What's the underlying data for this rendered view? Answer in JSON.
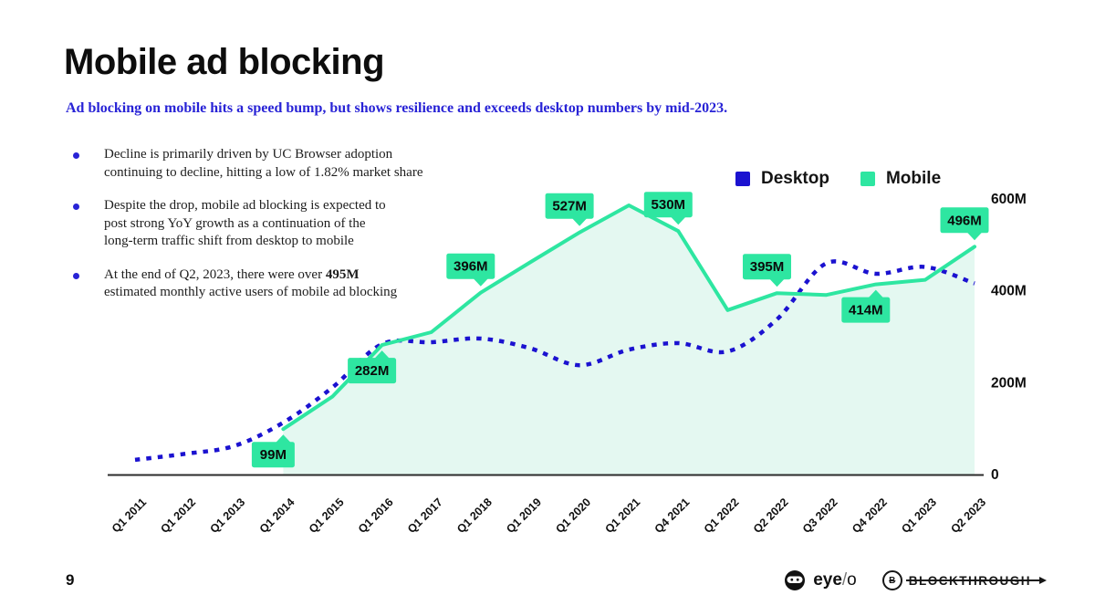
{
  "slide": {
    "title": "Mobile ad blocking",
    "subtitle": "Ad blocking on mobile hits a speed bump, but shows resilience and exceeds desktop numbers by mid-2023.",
    "page_number": "9"
  },
  "bullets": [
    {
      "line1": "Decline is primarily driven by UC Browser adoption",
      "line2": "continuing to decline, hitting a low of 1.82% market share"
    },
    {
      "line1": "Despite the drop, mobile ad blocking is expected to",
      "line2": "post strong YoY growth as a continuation of the",
      "line3": "long-term traffic shift from desktop to mobile"
    },
    {
      "pre": "At the end of Q2, 2023, there were over ",
      "bold": "495M",
      "line2": "estimated monthly active users of mobile ad blocking"
    }
  ],
  "legend": {
    "desktop_label": "Desktop",
    "mobile_label": "Mobile"
  },
  "colors": {
    "accent_blue_text": "#2823d6",
    "desktop_line": "#1b12d0",
    "mobile_line": "#2ee6a1",
    "mobile_area_fill": "#e4f8f1",
    "callout_bg": "#2ee6a1",
    "axis_line": "#2b2b2b"
  },
  "footer": {
    "eyeo": {
      "part1": "eye",
      "part2": "/",
      "part3": "o"
    },
    "blockthrough_b": "B",
    "blockthrough_text": "BLOCKTHROUGH"
  },
  "chart_data": {
    "type": "line",
    "title": "",
    "unit": "M",
    "grid": false,
    "legend_position": "top-right",
    "categories": [
      "Q1 2011",
      "Q1 2012",
      "Q1 2013",
      "Q1 2014",
      "Q1 2015",
      "Q1 2016",
      "Q1 2017",
      "Q1 2018",
      "Q1 2019",
      "Q1 2020",
      "Q1 2021",
      "Q4 2021",
      "Q1 2022",
      "Q2 2022",
      "Q3 2022",
      "Q4 2022",
      "Q1 2023",
      "Q2 2023"
    ],
    "series": [
      {
        "name": "Desktop",
        "style": "dotted",
        "color": "#1b12d0",
        "values": [
          32,
          45,
          62,
          113,
          190,
          284,
          288,
          296,
          275,
          238,
          272,
          286,
          268,
          338,
          460,
          437,
          452,
          416
        ]
      },
      {
        "name": "Mobile",
        "style": "solid-area",
        "color": "#2ee6a1",
        "fill": "#e4f8f1",
        "values": [
          null,
          null,
          null,
          99,
          170,
          282,
          310,
          396,
          462,
          527,
          586,
          530,
          358,
          395,
          391,
          414,
          424,
          496
        ]
      }
    ],
    "y_ticks": [
      {
        "value": 0,
        "label": "0"
      },
      {
        "value": 200,
        "label": "200M"
      },
      {
        "value": 400,
        "label": "400M"
      },
      {
        "value": 600,
        "label": "600M"
      }
    ],
    "ylim": [
      0,
      600
    ],
    "callouts": [
      {
        "label": "99M",
        "category": "Q1 2014",
        "index": 3,
        "value": 99,
        "side": "below"
      },
      {
        "label": "282M",
        "category": "Q1 2016",
        "index": 5,
        "value": 282,
        "side": "below"
      },
      {
        "label": "396M",
        "category": "Q1 2018",
        "index": 7,
        "value": 396,
        "side": "above"
      },
      {
        "label": "527M",
        "category": "Q1 2020",
        "index": 9,
        "value": 527,
        "side": "above"
      },
      {
        "label": "530M",
        "category": "Q4 2021",
        "index": 11,
        "value": 530,
        "side": "above"
      },
      {
        "label": "395M",
        "category": "Q2 2022",
        "index": 13,
        "value": 395,
        "side": "above"
      },
      {
        "label": "414M",
        "category": "Q4 2022",
        "index": 15,
        "value": 414,
        "side": "below"
      },
      {
        "label": "496M",
        "category": "Q2 2023",
        "index": 17,
        "value": 496,
        "side": "above"
      }
    ]
  }
}
